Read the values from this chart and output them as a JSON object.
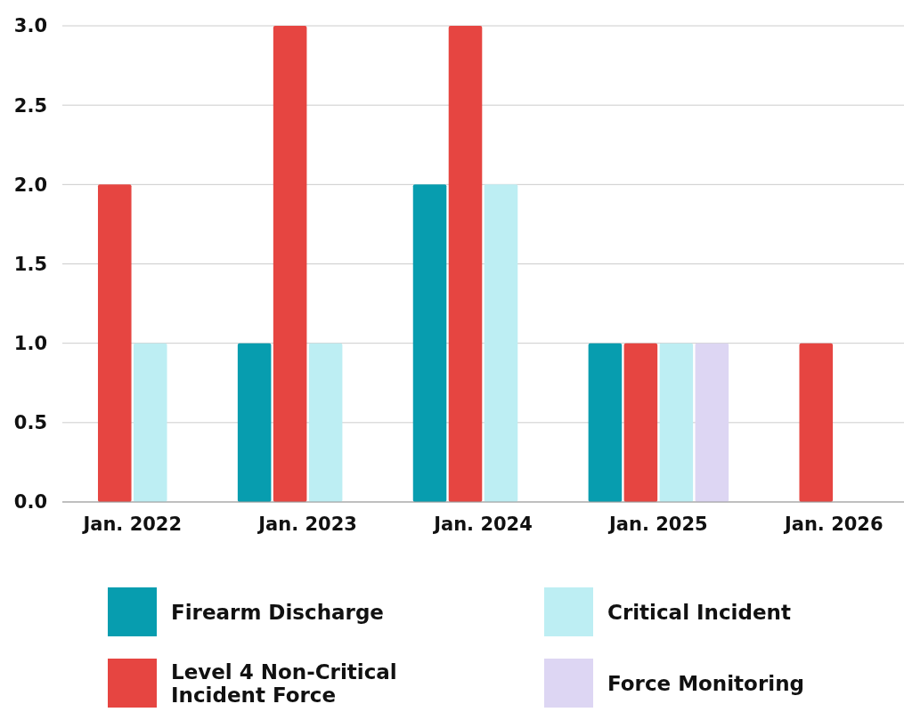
{
  "chart_data": {
    "type": "bar",
    "categories": [
      "Jan. 2022",
      "Jan. 2023",
      "Jan. 2024",
      "Jan. 2025",
      "Jan. 2026"
    ],
    "series": [
      {
        "name": "Firearm Discharge",
        "color": "#079daf",
        "values": [
          0,
          1,
          2,
          1,
          0
        ]
      },
      {
        "name": "Level 4 Non-Critical Incident Force",
        "color": "#e64541",
        "values": [
          2,
          3,
          3,
          1,
          1
        ]
      },
      {
        "name": "Critical Incident",
        "color": "#bdeef3",
        "values": [
          1,
          1,
          2,
          1,
          0
        ]
      },
      {
        "name": "Force Monitoring",
        "color": "#ddd6f3",
        "values": [
          0,
          0,
          0,
          1,
          0
        ]
      }
    ],
    "ylim": [
      0,
      3
    ],
    "yticks": [
      {
        "value": 0,
        "label": "0.0"
      },
      {
        "value": 0.5,
        "label": "0.5"
      },
      {
        "value": 1,
        "label": "1.0"
      },
      {
        "value": 1.5,
        "label": "1.5"
      },
      {
        "value": 2,
        "label": "2.0"
      },
      {
        "value": 2.5,
        "label": "2.5"
      },
      {
        "value": 3,
        "label": "3.0"
      }
    ],
    "grid": "y",
    "legend": "bottom"
  }
}
